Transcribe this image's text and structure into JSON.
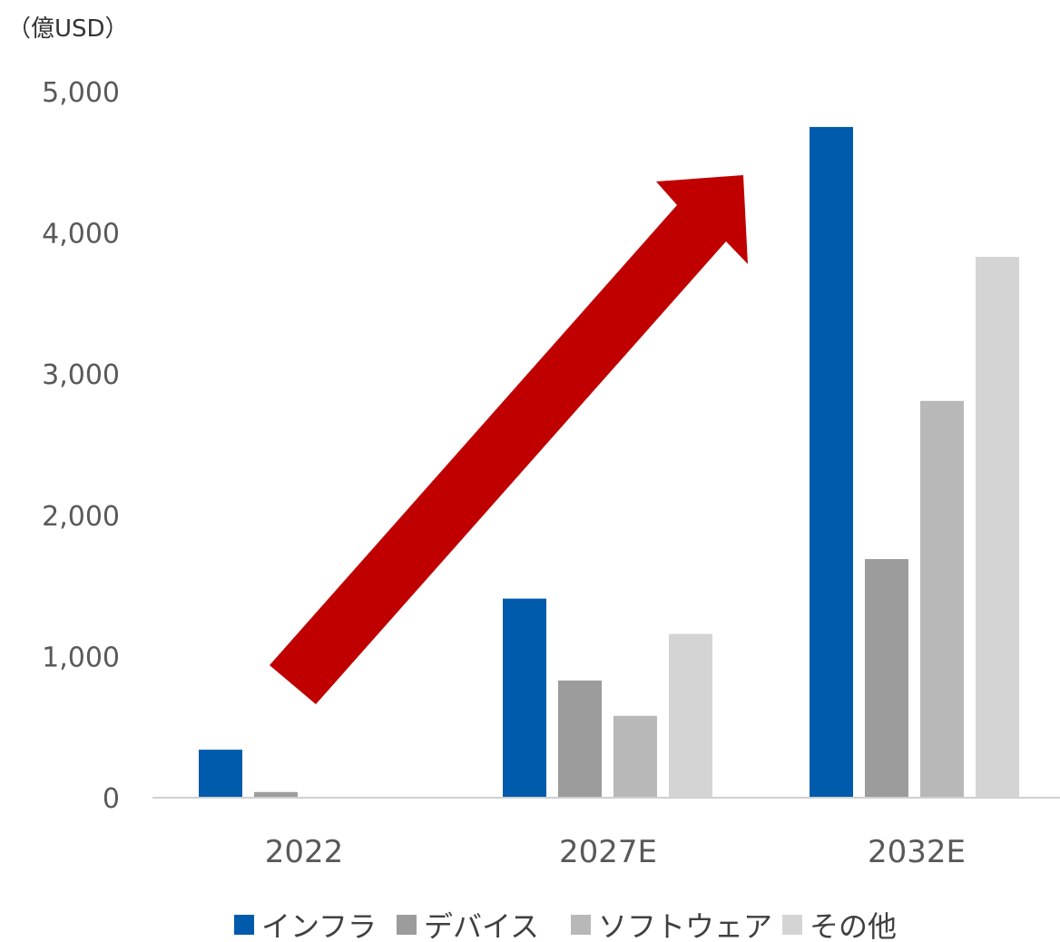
{
  "chart_data": {
    "type": "bar",
    "unit_label": "（億USD）",
    "categories": [
      "2022",
      "2027E",
      "2032E"
    ],
    "series": [
      {
        "name": "インフラ",
        "color": "#005bac",
        "values": [
          340,
          1410,
          4750
        ]
      },
      {
        "name": "デバイス",
        "color": "#9c9c9c",
        "values": [
          40,
          830,
          1690
        ]
      },
      {
        "name": "ソフトウェア",
        "color": "#b8b8b8",
        "values": [
          0,
          580,
          2810
        ]
      },
      {
        "name": "その他",
        "color": "#d4d4d4",
        "values": [
          0,
          1160,
          3830
        ]
      }
    ],
    "ylim": [
      0,
      5000
    ],
    "yticks": [
      0,
      1000,
      2000,
      3000,
      4000,
      5000
    ],
    "ytick_labels": [
      "0",
      "1,000",
      "2,000",
      "3,000",
      "4,000",
      "5,000"
    ],
    "grid": false,
    "legend_position": "bottom",
    "annotation": {
      "type": "arrow",
      "description_color": "#c00000"
    }
  }
}
